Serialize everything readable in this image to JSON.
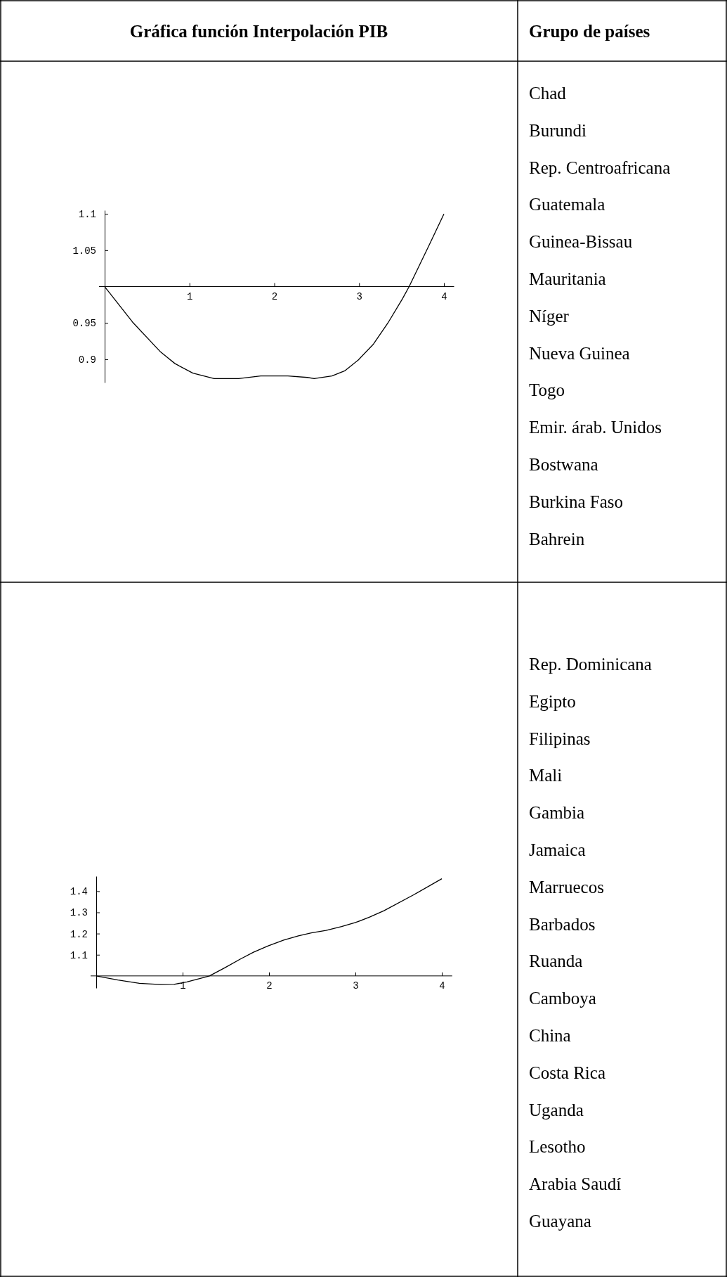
{
  "chart_data": [
    {
      "type": "line",
      "title": "Gráfica función Interpolación PIB",
      "x": [
        0,
        0.33,
        0.66,
        0.83,
        1.04,
        1.29,
        1.58,
        1.84,
        2.16,
        2.39,
        2.47,
        2.68,
        2.83,
        2.99,
        3.17,
        3.34,
        3.51,
        3.59,
        3.83,
        4.0
      ],
      "series": [
        {
          "color": "#000000",
          "values": [
            1.0,
            0.951,
            0.91,
            0.894,
            0.881,
            0.8735,
            0.8735,
            0.877,
            0.877,
            0.875,
            0.8735,
            0.877,
            0.884,
            0.899,
            0.921,
            0.95,
            0.983,
            1.0,
            1.058,
            1.1
          ]
        }
      ],
      "xlim": [
        0,
        4.12
      ],
      "ylim": [
        0.868,
        1.105
      ],
      "xticks": [
        1,
        2,
        3,
        4
      ],
      "yticks": [
        0.9,
        0.95,
        1.05,
        1.1
      ]
    },
    {
      "type": "other",
      "title": "Grupo de países",
      "annotations": [
        "Chad",
        "Burundi",
        "Rep. Centroafricana",
        "Guatemala",
        "Guinea-Bissau",
        "Mauritania",
        "Níger",
        "Nueva Guinea",
        "Togo",
        "Emir. árab. Unidos",
        "Bostwana",
        "Burkina Faso",
        "Bahrein"
      ]
    },
    {
      "type": "line",
      "x": [
        0,
        0.25,
        0.5,
        0.75,
        0.9,
        1.05,
        1.22,
        1.31,
        1.49,
        1.67,
        1.82,
        1.99,
        2.17,
        2.34,
        2.49,
        2.66,
        2.84,
        3.0,
        3.16,
        3.33,
        3.67,
        4.0
      ],
      "series": [
        {
          "color": "#000000",
          "values": [
            1.0,
            0.981,
            0.965,
            0.959,
            0.96,
            0.972,
            0.99,
            1.0,
            1.039,
            1.08,
            1.112,
            1.142,
            1.169,
            1.189,
            1.203,
            1.215,
            1.233,
            1.252,
            1.277,
            1.308,
            1.382,
            1.459
          ]
        }
      ],
      "xlim": [
        0,
        4.12
      ],
      "ylim": [
        0.943,
        1.471
      ],
      "xticks": [
        1,
        2,
        3,
        4
      ],
      "yticks": [
        1.1,
        1.2,
        1.3,
        1.4
      ]
    },
    {
      "type": "other",
      "annotations": [
        "Rep. Dominicana",
        "Egipto",
        "Filipinas",
        "Mali",
        "Gambia",
        "Jamaica",
        "Marruecos",
        "Barbados",
        "Ruanda",
        "Camboya",
        "China",
        "Costa Rica",
        "Uganda",
        "Lesotho",
        "Arabia Saudí",
        "Guayana"
      ]
    }
  ]
}
